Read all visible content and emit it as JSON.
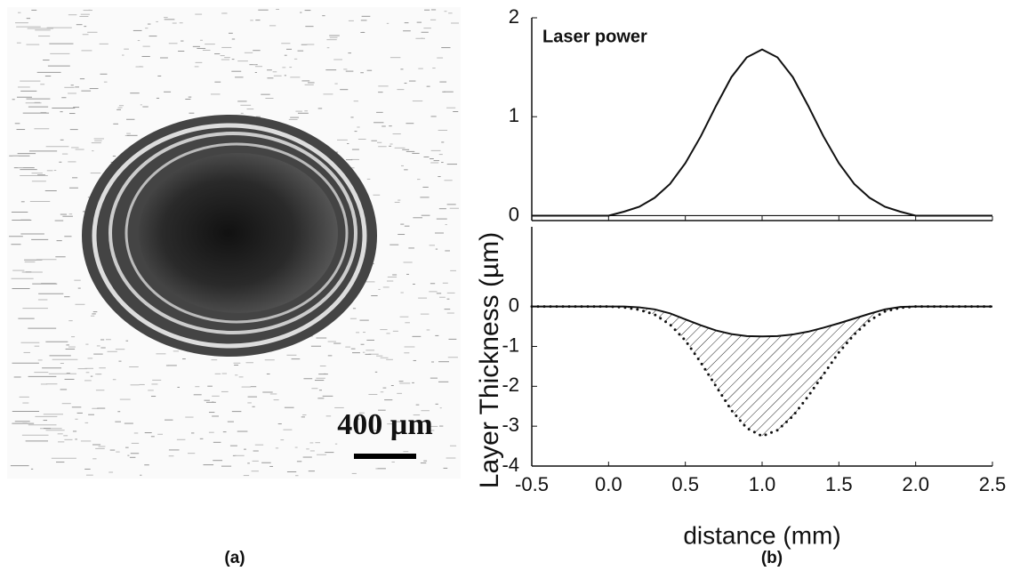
{
  "panel_a": {
    "scale_label": "400 µm",
    "caption": "(a)"
  },
  "caption_b": "(b)",
  "chart_data": [
    {
      "type": "line",
      "annotation": "Laser power",
      "x": [
        -0.5,
        -0.4,
        -0.3,
        -0.2,
        -0.1,
        0.0,
        0.1,
        0.2,
        0.3,
        0.4,
        0.5,
        0.6,
        0.7,
        0.8,
        0.9,
        1.0,
        1.1,
        1.2,
        1.3,
        1.4,
        1.5,
        1.6,
        1.7,
        1.8,
        1.9,
        2.0,
        2.1,
        2.2,
        2.3,
        2.4,
        2.5
      ],
      "series": [
        {
          "color": "#111111",
          "style": "solid",
          "values": [
            0,
            0,
            0,
            0,
            0,
            0,
            0.04,
            0.09,
            0.18,
            0.32,
            0.53,
            0.8,
            1.11,
            1.4,
            1.6,
            1.68,
            1.6,
            1.4,
            1.11,
            0.8,
            0.53,
            0.32,
            0.18,
            0.09,
            0.04,
            0,
            0,
            0,
            0,
            0,
            0
          ]
        }
      ],
      "xlim": [
        -0.5,
        2.5
      ],
      "ylim": [
        -0.05,
        2
      ],
      "yticks": [
        0,
        1,
        2
      ]
    },
    {
      "type": "line",
      "y_label": "Layer Thickness (µm)",
      "x_label": "distance (mm)",
      "x": [
        -0.5,
        -0.4,
        -0.3,
        -0.2,
        -0.1,
        0.0,
        0.1,
        0.2,
        0.3,
        0.4,
        0.5,
        0.6,
        0.7,
        0.8,
        0.9,
        1.0,
        1.1,
        1.2,
        1.3,
        1.4,
        1.5,
        1.6,
        1.7,
        1.8,
        1.9,
        2.0,
        2.1,
        2.2,
        2.3,
        2.4,
        2.5
      ],
      "series": [
        {
          "color": "#111111",
          "style": "solid",
          "values": [
            0,
            0,
            0,
            0,
            0,
            0,
            0,
            -0.02,
            -0.07,
            -0.17,
            -0.32,
            -0.47,
            -0.6,
            -0.69,
            -0.74,
            -0.75,
            -0.74,
            -0.7,
            -0.63,
            -0.53,
            -0.42,
            -0.3,
            -0.18,
            -0.07,
            -0.01,
            0,
            0,
            0,
            0,
            0,
            0
          ]
        },
        {
          "color": "#111111",
          "style": "dotted",
          "values": [
            0,
            0,
            0,
            0,
            0,
            0,
            -0.02,
            -0.08,
            -0.2,
            -0.45,
            -0.85,
            -1.4,
            -2.0,
            -2.6,
            -3.05,
            -3.25,
            -3.1,
            -2.75,
            -2.25,
            -1.7,
            -1.15,
            -0.7,
            -0.35,
            -0.12,
            -0.03,
            0,
            0,
            0,
            0,
            0,
            0
          ]
        }
      ],
      "hatch_between": true,
      "xlim": [
        -0.5,
        2.5
      ],
      "ylim": [
        -4,
        2
      ],
      "xticks": [
        -0.5,
        {
          "value": 0,
          "label": "0.0"
        },
        0.5,
        {
          "value": 1,
          "label": "1.0"
        },
        1.5,
        {
          "value": 2,
          "label": "2.0"
        },
        2.5
      ],
      "yticks": [
        0,
        -1,
        -2,
        -3,
        -4
      ]
    }
  ]
}
